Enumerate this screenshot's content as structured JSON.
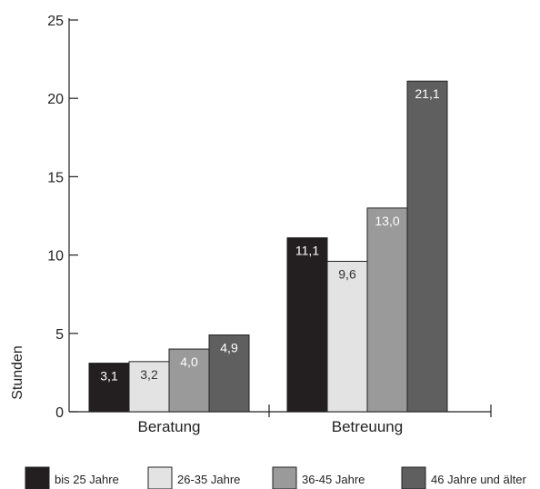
{
  "chart_data": {
    "type": "bar",
    "title": "",
    "xlabel": "",
    "ylabel": "Stunden",
    "ylim": [
      0,
      25
    ],
    "yticks": [
      0,
      5,
      10,
      15,
      20,
      25
    ],
    "categories": [
      "Beratung",
      "Betreuung"
    ],
    "series": [
      {
        "name": "bis 25 Jahre",
        "color": "#231f20",
        "values": [
          3.1,
          11.1
        ],
        "labels": [
          "3,1",
          "11,1"
        ]
      },
      {
        "name": "26-35 Jahre",
        "color": "#e3e3e3",
        "values": [
          3.2,
          9.6
        ],
        "labels": [
          "3,2",
          "9,6"
        ]
      },
      {
        "name": "36-45 Jahre",
        "color": "#9a9a9a",
        "values": [
          4.0,
          13.0
        ],
        "labels": [
          "4,0",
          "13,0"
        ]
      },
      {
        "name": "46 Jahre und älter",
        "color": "#5f5f5f",
        "values": [
          4.9,
          21.1
        ],
        "labels": [
          "4,9",
          "21,1"
        ]
      }
    ],
    "grid": false,
    "legend_position": "bottom"
  }
}
